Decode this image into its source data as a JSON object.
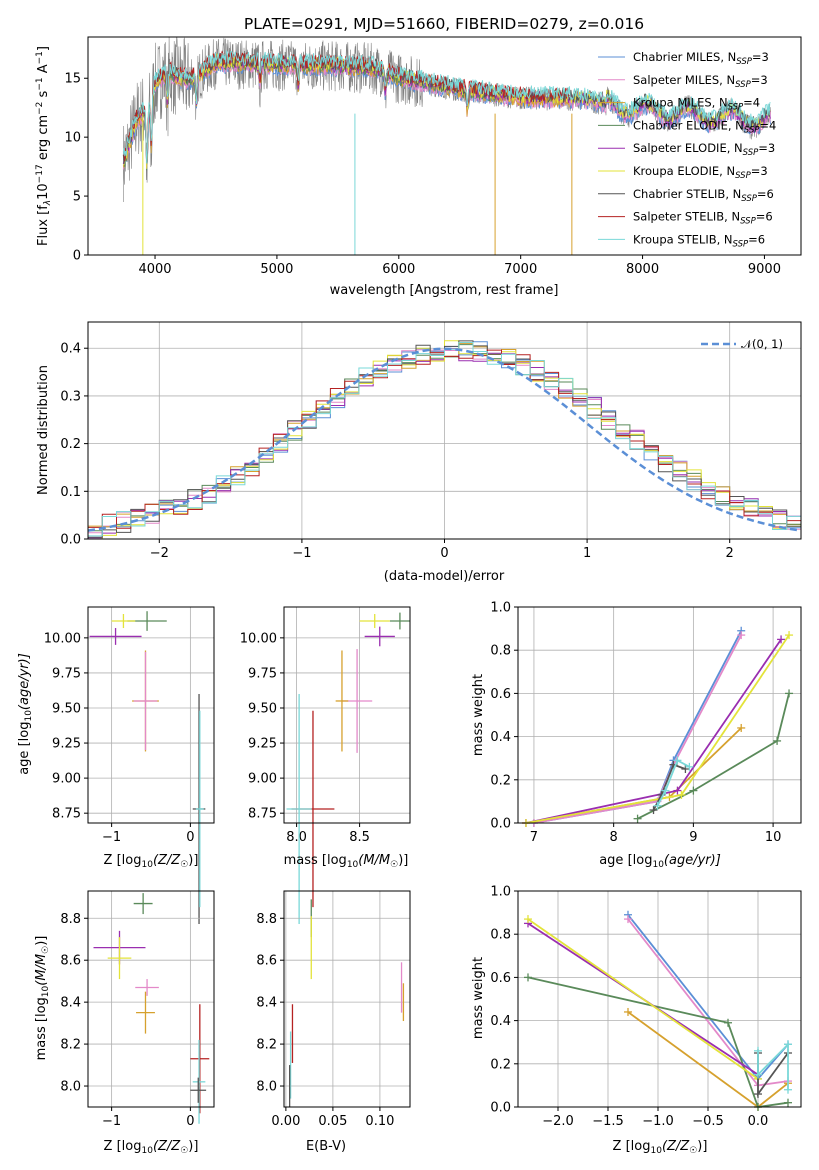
{
  "title": "PLATE=0291, MJD=51660, FIBERID=0279, z=0.016",
  "model_colors": [
    "#5b8fd6",
    "#e389c9",
    "#d6a12e",
    "#5a8a5a",
    "#9a2eb0",
    "#e3e33a",
    "#555555",
    "#b52222",
    "#7ad8d8"
  ],
  "spectrum": {
    "xlabel": "wavelength [Angstrom, rest frame]",
    "ylabel": "Flux [f_λ 10^-17 erg cm^-2 s^-1 A^-1]",
    "ylabel_parts": {
      "a": "Flux [f",
      "b": "λ",
      "c": "10",
      "d": "−17",
      "e": " erg cm",
      "f": "−2",
      "g": " s",
      "h": "−1",
      "i": " A",
      "j": "−1",
      "k": "]"
    },
    "xticks": [
      "4000",
      "5000",
      "6000",
      "7000",
      "8000",
      "9000"
    ],
    "yticks": [
      "0",
      "5",
      "10",
      "15"
    ],
    "legend": [
      {
        "label": "Chabrier MILES, N",
        "sub": "SSP",
        "rest": "=3",
        "color": "#5b8fd6"
      },
      {
        "label": "Salpeter MILES, N",
        "sub": "SSP",
        "rest": "=3",
        "color": "#e389c9"
      },
      {
        "label": "Kroupa MILES, N",
        "sub": "SSP",
        "rest": "=4",
        "color": "#d6a12e"
      },
      {
        "label": "Chabrier ELODIE, N",
        "sub": "SSP",
        "rest": "=4",
        "color": "#5a8a5a"
      },
      {
        "label": "Salpeter ELODIE, N",
        "sub": "SSP",
        "rest": "=3",
        "color": "#9a2eb0"
      },
      {
        "label": "Kroupa ELODIE, N",
        "sub": "SSP",
        "rest": "=3",
        "color": "#e3e33a"
      },
      {
        "label": "Chabrier STELIB, N",
        "sub": "SSP",
        "rest": "=6",
        "color": "#555555"
      },
      {
        "label": "Salpeter STELIB, N",
        "sub": "SSP",
        "rest": "=6",
        "color": "#b52222"
      },
      {
        "label": "Kroupa STELIB, N",
        "sub": "SSP",
        "rest": "=6",
        "color": "#7ad8d8"
      }
    ]
  },
  "histogram": {
    "xlabel": "(data-model)/error",
    "ylabel": "Normed distribution",
    "xticks": [
      "−2",
      "−1",
      "0",
      "1",
      "2"
    ],
    "yticks": [
      "0.0",
      "0.1",
      "0.2",
      "0.3",
      "0.4"
    ],
    "legend": "𝒩(0, 1)",
    "gauss_color": "#5b8fd6"
  },
  "panel_age_Z": {
    "xlabel": "Z [log10(Z/Z☉)]",
    "xlabel_parts": {
      "a": "Z [log",
      "b": "10",
      "c": "(Z/Z",
      "d": "☉",
      "e": ")]"
    },
    "ylabel": "age  [log10(age/yr)]",
    "ylabel_parts": {
      "a": "age  [log",
      "b": "10",
      "c": "(age/yr)]"
    },
    "xticks": [
      "−1",
      "0"
    ],
    "yticks": [
      "8.75",
      "9.00",
      "9.25",
      "9.50",
      "9.75",
      "10.00"
    ]
  },
  "panel_age_mass": {
    "xlabel": "mass [log10(M/M☉)]",
    "xlabel_parts": {
      "a": "mass [log",
      "b": "10",
      "c": "(M/M",
      "d": "☉",
      "e": ")]"
    },
    "xticks": [
      "8.0",
      "8.5"
    ],
    "yticks": [
      "8.75",
      "9.00",
      "9.25",
      "9.50",
      "9.75",
      "10.00"
    ]
  },
  "panel_mw_age": {
    "xlabel": "age  [log10(age/yr)]",
    "xlabel_parts": {
      "a": "age  [log",
      "b": "10",
      "c": "(age/yr)]"
    },
    "ylabel": "mass weight",
    "xticks": [
      "7",
      "8",
      "9",
      "10"
    ],
    "yticks": [
      "0.0",
      "0.2",
      "0.4",
      "0.6",
      "0.8",
      "1.0"
    ]
  },
  "panel_mass_Z": {
    "xlabel": "Z [log10(Z/Z☉)]",
    "xlabel_parts": {
      "a": "Z [log",
      "b": "10",
      "c": "(Z/Z",
      "d": "☉",
      "e": ")]"
    },
    "ylabel": "mass [log10(M/M☉)]",
    "ylabel_parts": {
      "a": "mass [log",
      "b": "10",
      "c": "(M/M",
      "d": "☉",
      "e": ")]"
    },
    "xticks": [
      "−1",
      "0"
    ],
    "yticks": [
      "8.0",
      "8.2",
      "8.4",
      "8.6",
      "8.8"
    ]
  },
  "panel_mass_ebv": {
    "xlabel": "E(B-V)",
    "xticks": [
      "0.00",
      "0.05",
      "0.10"
    ],
    "yticks": [
      "8.0",
      "8.2",
      "8.4",
      "8.6",
      "8.8"
    ]
  },
  "panel_mw_Z": {
    "xlabel": "Z [log10(Z/Z☉)]",
    "xlabel_parts": {
      "a": "Z [log",
      "b": "10",
      "c": "(Z/Z",
      "d": "☉",
      "e": ")]"
    },
    "ylabel": "mass weight",
    "xticks": [
      "−2.0",
      "−1.5",
      "−1.0",
      "−0.5",
      "0.0"
    ],
    "yticks": [
      "0.0",
      "0.2",
      "0.4",
      "0.6",
      "0.8",
      "1.0"
    ]
  },
  "chart_data": [
    {
      "type": "line",
      "title": "PLATE=0291, MJD=51660, FIBERID=0279, z=0.016",
      "xlabel": "wavelength [Angstrom, rest frame]",
      "ylabel": "Flux [f_λ 10^-17 erg cm^-2 s^-1 A^-1]",
      "xlim": [
        3450,
        9300
      ],
      "ylim": [
        0,
        18.5
      ],
      "series_names": [
        "Chabrier MILES, N_SSP=3",
        "Salpeter MILES, N_SSP=3",
        "Kroupa MILES, N_SSP=4",
        "Chabrier ELODIE, N_SSP=4",
        "Salpeter ELODIE, N_SSP=3",
        "Kroupa ELODIE, N_SSP=3",
        "Chabrier STELIB, N_SSP=6",
        "Salpeter STELIB, N_SSP=6",
        "Kroupa STELIB, N_SSP=6"
      ],
      "continuum_x": [
        3750,
        3850,
        3950,
        4000,
        4100,
        4200,
        4300,
        4500,
        5000,
        5500,
        5800,
        6000,
        6500,
        7000,
        7500,
        8000,
        8500,
        9000
      ],
      "continuum_y": [
        8,
        11.5,
        12.5,
        14.5,
        15.5,
        15,
        14.8,
        16.3,
        16.1,
        16,
        15.8,
        15,
        14,
        13.3,
        13.2,
        12.2,
        11.8,
        11.4
      ]
    },
    {
      "type": "bar",
      "xlabel": "(data-model)/error",
      "ylabel": "Normed distribution",
      "xlim": [
        -2.5,
        2.5
      ],
      "ylim": [
        0,
        0.455
      ],
      "bin_width": 0.1,
      "bin_centers": [
        -2.45,
        -2.35,
        -2.25,
        -2.15,
        -2.05,
        -1.95,
        -1.85,
        -1.75,
        -1.65,
        -1.55,
        -1.45,
        -1.35,
        -1.25,
        -1.15,
        -1.05,
        -0.95,
        -0.85,
        -0.75,
        -0.65,
        -0.55,
        -0.45,
        -0.35,
        -0.25,
        -0.15,
        -0.05,
        0.05,
        0.15,
        0.25,
        0.35,
        0.45,
        0.55,
        0.65,
        0.75,
        0.85,
        0.95,
        1.05,
        1.15,
        1.25,
        1.35,
        1.45,
        1.55,
        1.65,
        1.75,
        1.85,
        1.95,
        2.05,
        2.15,
        2.25,
        2.35,
        2.45
      ],
      "values": [
        0.022,
        0.03,
        0.036,
        0.044,
        0.052,
        0.064,
        0.074,
        0.083,
        0.096,
        0.113,
        0.135,
        0.153,
        0.176,
        0.2,
        0.226,
        0.25,
        0.276,
        0.297,
        0.32,
        0.341,
        0.357,
        0.37,
        0.38,
        0.386,
        0.392,
        0.4,
        0.396,
        0.393,
        0.385,
        0.377,
        0.365,
        0.352,
        0.334,
        0.316,
        0.294,
        0.275,
        0.251,
        0.229,
        0.206,
        0.184,
        0.163,
        0.143,
        0.124,
        0.106,
        0.089,
        0.074,
        0.062,
        0.05,
        0.04,
        0.032
      ],
      "gaussian": {
        "name": "𝒩(0, 1)",
        "mean": 0,
        "sigma": 1
      }
    },
    {
      "type": "scatter",
      "xlabel": "Z [log10(Z/Z☉)]",
      "ylabel": "age  [log10(age/yr)]",
      "xlim": [
        -1.3,
        0.3
      ],
      "ylim": [
        8.68,
        10.22
      ],
      "points": [
        {
          "x": -0.55,
          "y": 10.12,
          "xerr": 0.25,
          "yerr": 0.07,
          "color": "#5a8a5a"
        },
        {
          "x": -0.85,
          "y": 10.12,
          "xerr": 0.15,
          "yerr": 0.05,
          "color": "#e3e33a"
        },
        {
          "x": -0.95,
          "y": 10.01,
          "xerr": 0.33,
          "yerr": 0.06,
          "color": "#9a2eb0"
        },
        {
          "x": -0.57,
          "y": 9.55,
          "xerr": 0.17,
          "yerr": 0.36,
          "color": "#d6a12e"
        },
        {
          "x": -0.57,
          "y": 9.55,
          "xerr": 0.15,
          "yerr": 0.35,
          "color": "#e389c9"
        },
        {
          "x": 0.11,
          "y": 8.78,
          "xerr": 0.08,
          "yerr": 0.82,
          "color": "#555555"
        },
        {
          "x": 0.12,
          "y": 8.78,
          "xerr": 0.05,
          "yerr": 0.7,
          "color": "#7ad8d8"
        }
      ]
    },
    {
      "type": "scatter",
      "xlabel": "mass [log10(M/M☉)]",
      "xlim": [
        7.9,
        8.9
      ],
      "ylim": [
        8.68,
        10.22
      ],
      "points": [
        {
          "x": 8.82,
          "y": 10.12,
          "xerr": 0.08,
          "yerr": 0.06,
          "color": "#5a8a5a"
        },
        {
          "x": 8.62,
          "y": 10.12,
          "xerr": 0.12,
          "yerr": 0.05,
          "color": "#e3e33a"
        },
        {
          "x": 8.66,
          "y": 10.01,
          "xerr": 0.12,
          "yerr": 0.07,
          "color": "#9a2eb0"
        },
        {
          "x": 8.48,
          "y": 9.55,
          "xerr": 0.12,
          "yerr": 0.37,
          "color": "#e389c9"
        },
        {
          "x": 8.36,
          "y": 9.55,
          "xerr": 0.05,
          "yerr": 0.36,
          "color": "#d6a12e"
        },
        {
          "x": 8.13,
          "y": 8.78,
          "xerr": 0.17,
          "yerr": 0.7,
          "color": "#b52222"
        },
        {
          "x": 8.02,
          "y": 8.78,
          "xerr": 0.1,
          "yerr": 0.82,
          "color": "#7ad8d8"
        }
      ]
    },
    {
      "type": "line",
      "xlabel": "age  [log10(age/yr)]",
      "ylabel": "mass weight",
      "xlim": [
        6.8,
        10.35
      ],
      "ylim": [
        0,
        1
      ],
      "series": [
        {
          "color": "#5b8fd6",
          "x": [
            7,
            8.55,
            8.75,
            9.6
          ],
          "y": [
            0,
            0.1,
            0.29,
            0.89
          ]
        },
        {
          "color": "#e389c9",
          "x": [
            7,
            8.55,
            8.75,
            9.6
          ],
          "y": [
            0,
            0.1,
            0.27,
            0.87
          ]
        },
        {
          "color": "#d6a12e",
          "x": [
            6.9,
            8.7,
            9.6
          ],
          "y": [
            0,
            0.12,
            0.44
          ]
        },
        {
          "color": "#5a8a5a",
          "x": [
            8.3,
            9.0,
            10.05,
            10.2
          ],
          "y": [
            0.02,
            0.15,
            0.38,
            0.6
          ]
        },
        {
          "color": "#9a2eb0",
          "x": [
            6.9,
            8.8,
            10.1
          ],
          "y": [
            0,
            0.15,
            0.85
          ]
        },
        {
          "color": "#e3e33a",
          "x": [
            6.9,
            8.85,
            10.2
          ],
          "y": [
            0,
            0.13,
            0.87
          ]
        },
        {
          "color": "#555555",
          "x": [
            8.5,
            8.6,
            8.75,
            8.9
          ],
          "y": [
            0.06,
            0.13,
            0.27,
            0.25
          ]
        },
        {
          "color": "#7ad8d8",
          "x": [
            8.55,
            8.65,
            8.8,
            8.95
          ],
          "y": [
            0.08,
            0.15,
            0.29,
            0.26
          ]
        }
      ]
    },
    {
      "type": "scatter",
      "xlabel": "Z [log10(Z/Z☉)]",
      "ylabel": "mass [log10(M/M☉)]",
      "xlim": [
        -1.3,
        0.3
      ],
      "ylim": [
        7.9,
        8.93
      ],
      "points": [
        {
          "x": -0.6,
          "y": 8.87,
          "xerr": 0.12,
          "yerr": 0.05,
          "color": "#5a8a5a"
        },
        {
          "x": -0.9,
          "y": 8.66,
          "xerr": 0.33,
          "yerr": 0.08,
          "color": "#9a2eb0"
        },
        {
          "x": -0.9,
          "y": 8.61,
          "xerr": 0.15,
          "yerr": 0.1,
          "color": "#e3e33a"
        },
        {
          "x": -0.55,
          "y": 8.47,
          "xerr": 0.15,
          "yerr": 0.04,
          "color": "#e389c9"
        },
        {
          "x": -0.57,
          "y": 8.35,
          "xerr": 0.12,
          "yerr": 0.1,
          "color": "#d6a12e"
        },
        {
          "x": 0.12,
          "y": 8.13,
          "xerr": 0.12,
          "yerr": 0.26,
          "color": "#b52222"
        },
        {
          "x": 0.11,
          "y": 8.02,
          "xerr": 0.08,
          "yerr": 0.2,
          "color": "#7ad8d8"
        },
        {
          "x": 0.1,
          "y": 7.98,
          "xerr": 0.1,
          "yerr": 0.06,
          "color": "#555555"
        }
      ]
    },
    {
      "type": "scatter",
      "xlabel": "E(B-V)",
      "xlim": [
        -0.002,
        0.132
      ],
      "ylim": [
        7.9,
        8.93
      ],
      "points": [
        {
          "x": 0.027,
          "y": 8.8,
          "yerr": 0.09,
          "color": "#5a8a5a"
        },
        {
          "x": 0.027,
          "y": 8.66,
          "yerr": 0.15,
          "color": "#e3e33a"
        },
        {
          "x": 0.123,
          "y": 8.47,
          "yerr": 0.12,
          "color": "#e389c9"
        },
        {
          "x": 0.125,
          "y": 8.4,
          "yerr": 0.09,
          "color": "#d6a12e"
        },
        {
          "x": 0.007,
          "y": 8.25,
          "yerr": 0.14,
          "color": "#b52222"
        },
        {
          "x": 0.005,
          "y": 8.1,
          "yerr": 0.16,
          "color": "#7ad8d8"
        },
        {
          "x": 0.004,
          "y": 8.0,
          "yerr": 0.1,
          "color": "#555555"
        }
      ]
    },
    {
      "type": "line",
      "xlabel": "Z [log10(Z/Z☉)]",
      "ylabel": "mass weight",
      "xlim": [
        -2.4,
        0.43
      ],
      "ylim": [
        0,
        1
      ],
      "series": [
        {
          "color": "#5b8fd6",
          "x": [
            -1.3,
            0,
            0.3
          ],
          "y": [
            0.89,
            0.13,
            0.29
          ]
        },
        {
          "color": "#e389c9",
          "x": [
            -1.3,
            0,
            0.3
          ],
          "y": [
            0.87,
            0.1,
            0.12
          ]
        },
        {
          "color": "#d6a12e",
          "x": [
            -1.3,
            0,
            0.3
          ],
          "y": [
            0.44,
            0,
            0.11
          ]
        },
        {
          "color": "#5a8a5a",
          "x": [
            -2.3,
            -0.3,
            0,
            0.3
          ],
          "y": [
            0.6,
            0.39,
            0,
            0.02
          ]
        },
        {
          "color": "#9a2eb0",
          "x": [
            -2.3,
            0
          ],
          "y": [
            0.85,
            0.15
          ]
        },
        {
          "color": "#e3e33a",
          "x": [
            -2.3,
            0
          ],
          "y": [
            0.87,
            0.13
          ]
        },
        {
          "color": "#555555",
          "x": [
            0,
            0,
            0.3
          ],
          "y": [
            0.25,
            0.06,
            0.25
          ]
        },
        {
          "color": "#7ad8d8",
          "x": [
            0,
            0,
            0.3,
            0.3
          ],
          "y": [
            0.26,
            0.15,
            0.29,
            0.08
          ]
        }
      ]
    }
  ]
}
